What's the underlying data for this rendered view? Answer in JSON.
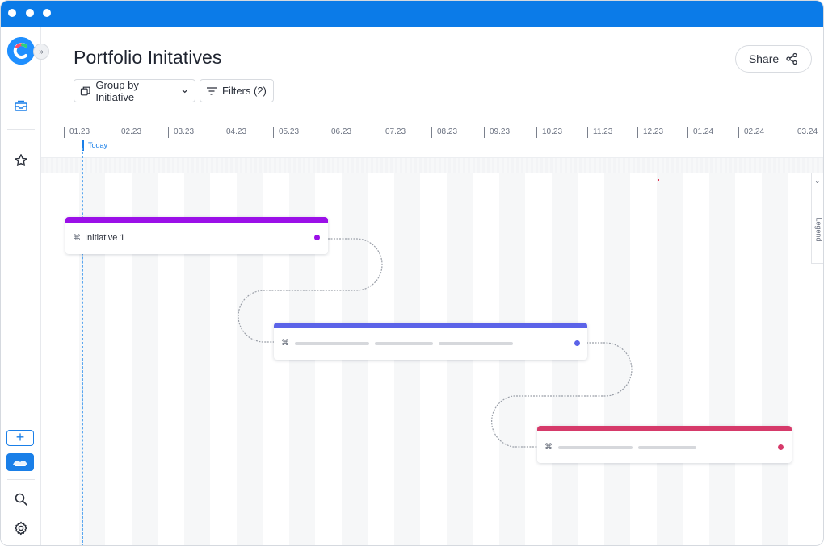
{
  "window": {
    "titlebar_color": "#0b7be8"
  },
  "sidebar": {
    "logo_icon": "app-logo",
    "collapse_icon": "double-chevron-right-icon",
    "collapse_label": "»",
    "nav_items": [
      "inbox-icon",
      "star-icon"
    ],
    "add_label": "+",
    "bottom_icons": [
      "search-icon",
      "gear-icon"
    ]
  },
  "header": {
    "title": "Portfolio Initatives",
    "share_label": "Share",
    "group_by_label": "Group by Initiative",
    "filters_label": "Filters (2)"
  },
  "timeline": {
    "months": [
      "01.23",
      "02.23",
      "03.23",
      "04.23",
      "05.23",
      "06.23",
      "07.23",
      "08.23",
      "09.23",
      "10.23",
      "11.23",
      "12.23",
      "01.24",
      "02.24",
      "03.24"
    ],
    "today_label": "Today",
    "legend_label": "Legend",
    "legend_chevron": "⌄"
  },
  "initiatives": [
    {
      "name": "Initiative 1",
      "color": "#9b10e8",
      "status_color": "#9b10e8"
    },
    {
      "name": "",
      "color": "#5b63e8",
      "status_color": "#5b63e8"
    },
    {
      "name": "",
      "color": "#d63a6a",
      "status_color": "#d63a6a"
    }
  ]
}
